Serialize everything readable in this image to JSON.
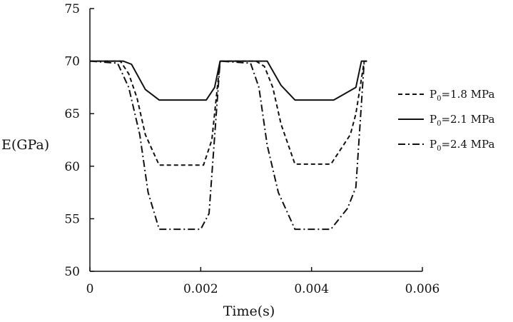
{
  "chart_data": {
    "type": "line",
    "xlabel": "Time(s)",
    "ylabel": "E(GPa)",
    "xlim": [
      0,
      0.006
    ],
    "ylim": [
      50,
      75
    ],
    "xticks": [
      0,
      0.002,
      0.004,
      0.006
    ],
    "xtick_labels": [
      "0",
      "0.002",
      "0.004",
      "0.006"
    ],
    "yticks": [
      50,
      55,
      60,
      65,
      70,
      75
    ],
    "ytick_labels": [
      "50",
      "55",
      "60",
      "65",
      "70",
      "75"
    ],
    "grid": false,
    "legend_position": "right",
    "series": [
      {
        "name_main": "P",
        "name_sub": "0",
        "name_rest": "=1.8 MPa",
        "dash": "dashed",
        "x": [
          0,
          0.00055,
          0.0007,
          0.00085,
          0.001,
          0.00125,
          0.00205,
          0.0022,
          0.00235,
          0.003,
          0.00315,
          0.0033,
          0.00345,
          0.0037,
          0.00435,
          0.0047,
          0.0048,
          0.00495,
          0.005
        ],
        "y": [
          70,
          70,
          68.8,
          66.5,
          63,
          60.1,
          60.1,
          62.5,
          70,
          70,
          69.5,
          67.5,
          64,
          60.2,
          60.2,
          63,
          65,
          70,
          70
        ]
      },
      {
        "name_main": "P",
        "name_sub": "0",
        "name_rest": "=2.1 MPa",
        "dash": "solid",
        "x": [
          0,
          0.0006,
          0.00075,
          0.001,
          0.00125,
          0.0021,
          0.00225,
          0.00235,
          0.0032,
          0.00345,
          0.0037,
          0.0044,
          0.0048,
          0.0049,
          0.005
        ],
        "y": [
          70,
          70,
          69.7,
          67.3,
          66.3,
          66.3,
          67.5,
          70,
          70,
          67.7,
          66.3,
          66.3,
          67.5,
          70,
          70
        ]
      },
      {
        "name_main": "P",
        "name_sub": "0",
        "name_rest": "=2.4 MPa",
        "dash": "dashdot",
        "x": [
          0,
          0.0005,
          0.0007,
          0.0009,
          0.00105,
          0.00125,
          0.002,
          0.00215,
          0.00235,
          0.0029,
          0.00305,
          0.0032,
          0.0034,
          0.0037,
          0.00435,
          0.00465,
          0.0048,
          0.00495,
          0.005
        ],
        "y": [
          70,
          69.8,
          67.5,
          63,
          57.5,
          54,
          54,
          55.5,
          70,
          69.8,
          67.5,
          62,
          57.5,
          54,
          54,
          56,
          58,
          70,
          70
        ]
      }
    ]
  }
}
